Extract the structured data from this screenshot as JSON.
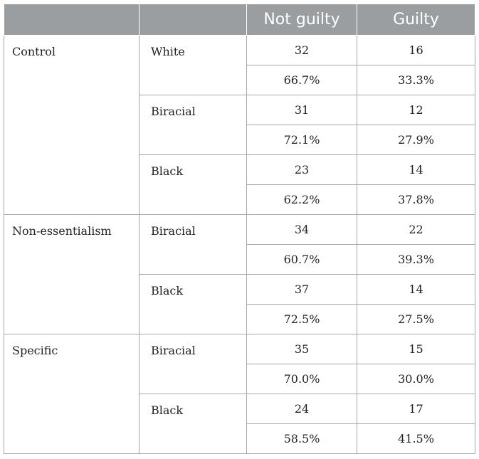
{
  "headers": [
    "",
    "",
    "Not guilty",
    "Guilty"
  ],
  "groups": [
    {
      "condition": "Control",
      "races": [
        {
          "race": "White",
          "rows": [
            [
              "32",
              "16"
            ],
            [
              "66.7%",
              "33.3%"
            ]
          ]
        },
        {
          "race": "Biracial",
          "rows": [
            [
              "31",
              "12"
            ],
            [
              "72.1%",
              "27.9%"
            ]
          ]
        },
        {
          "race": "Black",
          "rows": [
            [
              "23",
              "14"
            ],
            [
              "62.2%",
              "37.8%"
            ]
          ]
        }
      ]
    },
    {
      "condition": "Non-essentialism",
      "races": [
        {
          "race": "Biracial",
          "rows": [
            [
              "34",
              "22"
            ],
            [
              "60.7%",
              "39.3%"
            ]
          ]
        },
        {
          "race": "Black",
          "rows": [
            [
              "37",
              "14"
            ],
            [
              "72.5%",
              "27.5%"
            ]
          ]
        }
      ]
    },
    {
      "condition": "Specific",
      "races": [
        {
          "race": "Biracial",
          "rows": [
            [
              "35",
              "15"
            ],
            [
              "70.0%",
              "30.0%"
            ]
          ]
        },
        {
          "race": "Black",
          "rows": [
            [
              "24",
              "17"
            ],
            [
              "58.5%",
              "41.5%"
            ]
          ]
        }
      ]
    }
  ]
}
